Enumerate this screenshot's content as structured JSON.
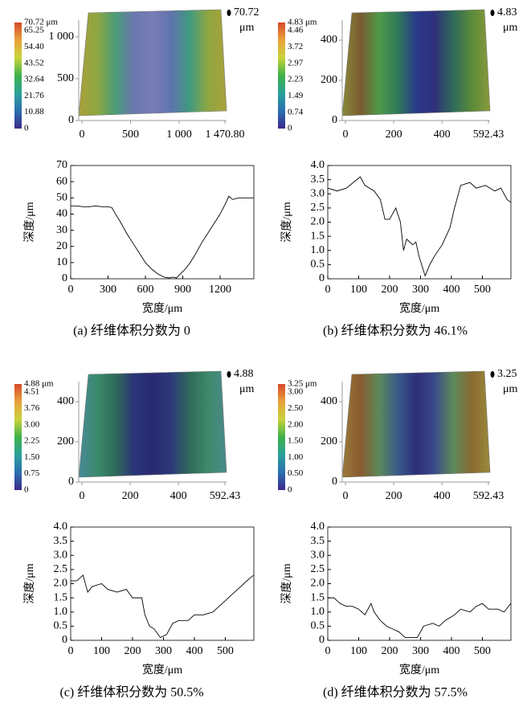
{
  "chart_data": [
    {
      "type": "surface",
      "colormap": [
        "#3b2a8c",
        "#2c6fb0",
        "#2aa198",
        "#3fb24a",
        "#c9d33a",
        "#e8a23a",
        "#d9472b"
      ],
      "clim": [
        0,
        70.72
      ],
      "cticks": [
        {
          "value": 70.72,
          "label": "70.72 μm"
        },
        65.25,
        {
          "value": 54.4,
          "label": "54.40"
        },
        43.52,
        32.64,
        21.76,
        10.88,
        0
      ],
      "xlim": [
        0,
        1470.8
      ],
      "xticks": [
        0,
        500,
        {
          "value": 1000,
          "label": "1 000"
        },
        {
          "value": 1470.8,
          "label": "1 470.80"
        }
      ],
      "ylim": [
        0,
        1200
      ],
      "yticks": [
        0,
        500,
        {
          "value": 1000,
          "label": "1 000"
        }
      ],
      "zmax": 70.72,
      "zunit": "μm",
      "surface_colors": [
        "#a9a03a",
        "#8ea640",
        "#4a9c78",
        "#6a78b0",
        "#7a7cb8",
        "#5f74ac",
        "#3f9a80",
        "#8fa640",
        "#aaa23c"
      ]
    },
    {
      "type": "line",
      "color": "#000000",
      "x": [
        0,
        50,
        100,
        150,
        200,
        250,
        300,
        330,
        360,
        400,
        450,
        500,
        550,
        600,
        650,
        700,
        750,
        790,
        820,
        850,
        880,
        920,
        960,
        1000,
        1050,
        1100,
        1150,
        1200,
        1240,
        1270,
        1300,
        1350,
        1400,
        1470
      ],
      "values": [
        45,
        45,
        44.5,
        44.5,
        45,
        44.5,
        44.5,
        44,
        40,
        35,
        28,
        22,
        16,
        10,
        6,
        3,
        1,
        0.5,
        1,
        0.5,
        3,
        6,
        10,
        15,
        22,
        28,
        34,
        40,
        46,
        51,
        49,
        50,
        50,
        50
      ],
      "xlim": [
        0,
        1470.8
      ],
      "xticks": [
        0,
        300,
        600,
        900,
        1200
      ],
      "ylim": [
        0,
        70
      ],
      "yticks": [
        0,
        10,
        20,
        30,
        40,
        50,
        60,
        70
      ],
      "xlabel": "宽度/μm",
      "ylabel": "深度/μm",
      "caption": "(a) 纤维体积分数为 0"
    },
    {
      "type": "surface",
      "colormap": [
        "#3b2a8c",
        "#2c6fb0",
        "#2aa198",
        "#3fb24a",
        "#c9d33a",
        "#e8a23a",
        "#d9472b"
      ],
      "clim": [
        0,
        4.83
      ],
      "cticks": [
        {
          "value": 4.83,
          "label": "4.83 μm"
        },
        4.46,
        3.72,
        2.97,
        2.23,
        1.49,
        0.74,
        0
      ],
      "xlim": [
        0,
        592.43
      ],
      "xticks": [
        0,
        200,
        400,
        592.43
      ],
      "ylim": [
        0,
        500
      ],
      "yticks": [
        0,
        200,
        400
      ],
      "zmax": 4.83,
      "zunit": "μm",
      "surface_colors": [
        "#8a8a3a",
        "#7a5a30",
        "#4f9a48",
        "#2f7a5a",
        "#2a3a8a",
        "#30307a",
        "#2f6a5a",
        "#5a8a3a",
        "#8a9a3a"
      ]
    },
    {
      "type": "line",
      "color": "#000000",
      "x": [
        0,
        30,
        60,
        105,
        120,
        150,
        170,
        185,
        200,
        220,
        235,
        245,
        255,
        275,
        285,
        295,
        315,
        330,
        345,
        370,
        395,
        410,
        430,
        460,
        480,
        510,
        540,
        560,
        580,
        592
      ],
      "values": [
        3.2,
        3.1,
        3.2,
        3.6,
        3.3,
        3.1,
        2.8,
        2.1,
        2.1,
        2.5,
        2,
        1,
        1.4,
        1.2,
        1.3,
        0.8,
        0.1,
        0.5,
        0.8,
        1.2,
        1.8,
        2.5,
        3.3,
        3.4,
        3.2,
        3.3,
        3.1,
        3.2,
        2.8,
        2.7
      ],
      "xlim": [
        0,
        592.43
      ],
      "xticks": [
        0,
        100,
        200,
        300,
        400,
        500
      ],
      "ylim": [
        0,
        4
      ],
      "yticks": [
        0,
        0.5,
        {
          "value": 1,
          "label": "1.0"
        },
        1.5,
        {
          "value": 2,
          "label": "2.0"
        },
        2.5,
        {
          "value": 3,
          "label": "3.0"
        },
        3.5,
        {
          "value": 4,
          "label": "4.0"
        }
      ],
      "xlabel": "宽度/μm",
      "ylabel": "深度/μm",
      "caption": "(b) 纤维体积分数为 46.1%"
    },
    {
      "type": "surface",
      "colormap": [
        "#3b2a8c",
        "#2c6fb0",
        "#2aa198",
        "#3fb24a",
        "#c9d33a",
        "#e8a23a",
        "#d9472b"
      ],
      "clim": [
        0,
        4.88
      ],
      "cticks": [
        {
          "value": 4.88,
          "label": "4.88 μm"
        },
        4.51,
        3.76,
        {
          "value": 3,
          "label": "3.00"
        },
        2.25,
        {
          "value": 1.5,
          "label": "1.50"
        },
        0.75,
        0
      ],
      "xlim": [
        0,
        592.43
      ],
      "xticks": [
        0,
        200,
        400,
        592.43
      ],
      "ylim": [
        0,
        500
      ],
      "yticks": [
        0,
        200,
        400
      ],
      "zmax": 4.88,
      "zunit": "μm",
      "surface_colors": [
        "#4a8a9a",
        "#3a8a6a",
        "#2f6a5a",
        "#2a3478",
        "#2a2a70",
        "#2d3a7a",
        "#2f6a5a",
        "#3f8a6a",
        "#4a8a8a"
      ]
    },
    {
      "type": "line",
      "color": "#000000",
      "x": [
        0,
        20,
        40,
        55,
        70,
        100,
        120,
        150,
        180,
        200,
        230,
        240,
        255,
        270,
        290,
        310,
        330,
        350,
        380,
        400,
        430,
        460,
        480,
        500,
        520,
        540,
        560,
        580,
        592
      ],
      "values": [
        2.1,
        2.1,
        2.3,
        1.7,
        1.9,
        2,
        1.8,
        1.7,
        1.8,
        1.5,
        1.5,
        0.9,
        0.5,
        0.4,
        0.1,
        0.2,
        0.6,
        0.7,
        0.7,
        0.9,
        0.9,
        1,
        1.2,
        1.4,
        1.6,
        1.8,
        2,
        2.2,
        2.3
      ],
      "xlim": [
        0,
        592.43
      ],
      "xticks": [
        0,
        100,
        200,
        300,
        400,
        500
      ],
      "ylim": [
        0,
        4
      ],
      "yticks": [
        0,
        0.5,
        {
          "value": 1,
          "label": "1.0"
        },
        1.5,
        {
          "value": 2,
          "label": "2.0"
        },
        2.5,
        {
          "value": 3,
          "label": "3.0"
        },
        3.5,
        {
          "value": 4,
          "label": "4.0"
        }
      ],
      "xlabel": "宽度/μm",
      "ylabel": "深度/μm",
      "caption": "(c) 纤维体积分数为 50.5%"
    },
    {
      "type": "surface",
      "colormap": [
        "#3b2a8c",
        "#2c6fb0",
        "#2aa198",
        "#3fb24a",
        "#c9d33a",
        "#e8a23a",
        "#d9472b"
      ],
      "clim": [
        0,
        3.25
      ],
      "cticks": [
        {
          "value": 3.25,
          "label": "3.25 μm"
        },
        {
          "value": 3,
          "label": "3.00"
        },
        {
          "value": 2.5,
          "label": "2.50"
        },
        {
          "value": 2,
          "label": "2.00"
        },
        {
          "value": 1.5,
          "label": "1.50"
        },
        {
          "value": 1,
          "label": "1.00"
        },
        {
          "value": 0.5,
          "label": "0.50"
        },
        0
      ],
      "xlim": [
        0,
        592.43
      ],
      "xticks": [
        0,
        200,
        400,
        592.43
      ],
      "ylim": [
        0,
        500
      ],
      "yticks": [
        0,
        200,
        400
      ],
      "zmax": 3.25,
      "zunit": "μm",
      "surface_colors": [
        "#9a7a3a",
        "#8a5a30",
        "#5a8a5a",
        "#3a5a8a",
        "#2e2e78",
        "#3a4a8a",
        "#5a8a5a",
        "#8a6a30",
        "#9a8a3a"
      ]
    },
    {
      "type": "line",
      "color": "#000000",
      "x": [
        0,
        20,
        40,
        60,
        80,
        100,
        120,
        140,
        150,
        170,
        190,
        210,
        230,
        250,
        270,
        290,
        310,
        340,
        360,
        380,
        410,
        430,
        460,
        480,
        500,
        520,
        550,
        570,
        592
      ],
      "values": [
        1.5,
        1.5,
        1.3,
        1.2,
        1.2,
        1.1,
        0.9,
        1.3,
        1,
        0.7,
        0.5,
        0.4,
        0.3,
        0.1,
        0.1,
        0.1,
        0.5,
        0.6,
        0.5,
        0.7,
        0.9,
        1.1,
        1,
        1.2,
        1.3,
        1.1,
        1.1,
        1,
        1.3
      ],
      "xlim": [
        0,
        592.43
      ],
      "xticks": [
        0,
        100,
        200,
        300,
        400,
        500
      ],
      "ylim": [
        0,
        4
      ],
      "yticks": [
        0,
        0.5,
        {
          "value": 1,
          "label": "1.0"
        },
        1.5,
        {
          "value": 2,
          "label": "2.0"
        },
        2.5,
        {
          "value": 3,
          "label": "3.0"
        },
        3.5,
        {
          "value": 4,
          "label": "4.0"
        }
      ],
      "xlabel": "宽度/μm",
      "ylabel": "深度/μm",
      "caption": "(d) 纤维体积分数为 57.5%"
    }
  ]
}
